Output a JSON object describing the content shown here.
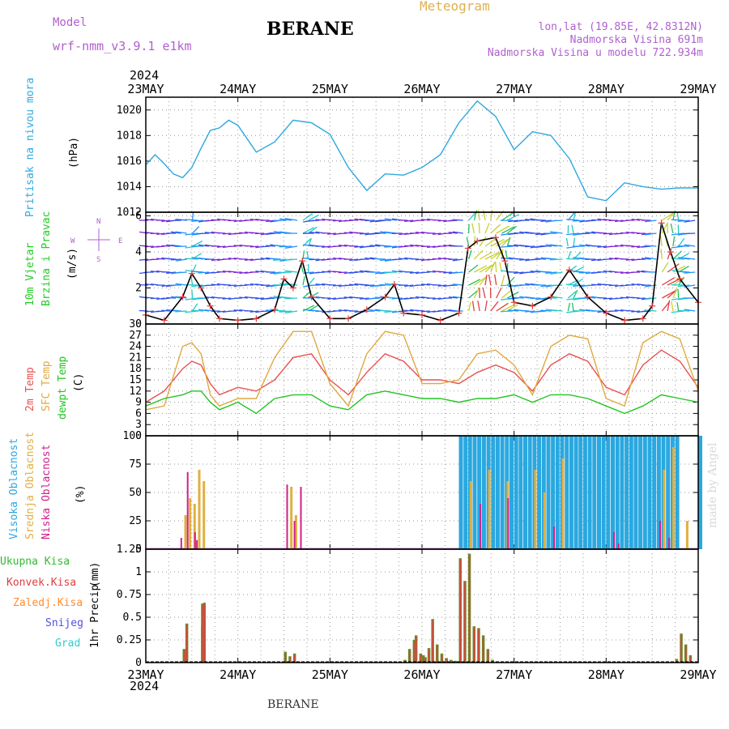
{
  "header": {
    "model_label": "Model",
    "model_name": "wrf-nmm_v3.9.1  e1km",
    "station": "BERANE",
    "product": "Meteogram",
    "coords": "lon,lat (19.85E, 42.8312N)",
    "elevation": "Nadmorska Visina 691m",
    "model_elevation": "Nadmorska Visina u modelu 722.934m",
    "footer_station": "BERANE",
    "credit": "made by Angel"
  },
  "colors": {
    "pressure": "#2fa8e0",
    "temp2m": "#e85050",
    "sfc": "#e0a840",
    "dewpoint": "#22c422",
    "high_cloud": "#2aa8e0",
    "mid_cloud": "#e0b040",
    "low_cloud": "#d0208a",
    "total_precip": "#33bb33",
    "conv_precip": "#e04040",
    "grid_precip": "#ff8c33",
    "snow": "#5050e0",
    "graupel": "#33cccc",
    "wind_label": "#22cc22"
  },
  "time_axis": {
    "year": "2024",
    "days": [
      "23MAY",
      "24MAY",
      "25MAY",
      "26MAY",
      "27MAY",
      "28MAY",
      "29MAY"
    ]
  },
  "chart_data": [
    {
      "type": "line",
      "panel": "pressure",
      "ylabel": "Pritisak na nivou mora",
      "unit": "(hPa)",
      "ylim": [
        1012,
        1021
      ],
      "yticks": [
        1012,
        1014,
        1016,
        1018,
        1020
      ],
      "x": [
        0,
        0.1,
        0.2,
        0.3,
        0.4,
        0.5,
        0.6,
        0.7,
        0.8,
        0.9,
        1.0,
        1.2,
        1.4,
        1.6,
        1.8,
        2.0,
        2.2,
        2.4,
        2.6,
        2.8,
        3.0,
        3.2,
        3.4,
        3.6,
        3.8,
        4.0,
        4.2,
        4.4,
        4.6,
        4.8,
        5.0,
        5.2,
        5.4,
        5.6,
        5.8,
        6.0
      ],
      "series": [
        {
          "values": [
            1015.7,
            1016.5,
            1015.8,
            1015.0,
            1014.7,
            1015.5,
            1017.0,
            1018.4,
            1018.6,
            1019.2,
            1018.8,
            1016.7,
            1017.5,
            1019.2,
            1019.0,
            1018.1,
            1015.5,
            1013.7,
            1015.0,
            1014.9,
            1015.5,
            1016.5,
            1019.0,
            1020.7,
            1019.5,
            1016.9,
            1018.3,
            1018.0,
            1016.2,
            1013.2,
            1012.9,
            1014.3,
            1014.0,
            1013.8,
            1013.9,
            1013.9
          ]
        }
      ]
    },
    {
      "type": "line",
      "panel": "wind",
      "ylabel": [
        "10m Vjetar",
        "Brzina i Pravac"
      ],
      "unit": "(m/s)",
      "compass": {
        "n": "N",
        "s": "S",
        "w": "W",
        "e": "E"
      },
      "ylim": [
        0,
        6.2
      ],
      "yticks": [
        0,
        2,
        4,
        6
      ],
      "x": [
        0,
        0.2,
        0.4,
        0.5,
        0.6,
        0.7,
        0.8,
        1.0,
        1.2,
        1.4,
        1.5,
        1.6,
        1.7,
        1.8,
        2.0,
        2.2,
        2.4,
        2.6,
        2.7,
        2.8,
        3.0,
        3.2,
        3.4,
        3.5,
        3.6,
        3.8,
        3.9,
        4.0,
        4.2,
        4.4,
        4.6,
        4.8,
        5.0,
        5.2,
        5.4,
        5.5,
        5.6,
        5.7,
        5.8,
        6.0
      ],
      "series": [
        {
          "values": [
            0.5,
            0.2,
            1.5,
            2.8,
            2.0,
            1.0,
            0.3,
            0.2,
            0.3,
            0.8,
            2.5,
            2.0,
            3.5,
            1.5,
            0.3,
            0.3,
            0.8,
            1.5,
            2.2,
            0.6,
            0.5,
            0.2,
            0.6,
            4.2,
            4.6,
            4.8,
            3.5,
            1.2,
            1.0,
            1.5,
            3.0,
            1.5,
            0.6,
            0.2,
            0.3,
            1.0,
            5.6,
            4.0,
            2.5,
            1.2
          ]
        }
      ]
    },
    {
      "type": "line",
      "panel": "temperature",
      "ylabel": [
        "2m Temp",
        "SFC Temp",
        "dewpt Temp"
      ],
      "unit": "(C)",
      "ylim": [
        0,
        30
      ],
      "yticks": [
        0,
        3,
        6,
        9,
        12,
        15,
        18,
        21,
        24,
        27,
        30
      ],
      "x": [
        0,
        0.2,
        0.4,
        0.5,
        0.6,
        0.7,
        0.8,
        1.0,
        1.2,
        1.4,
        1.6,
        1.8,
        2.0,
        2.2,
        2.4,
        2.6,
        2.8,
        3.0,
        3.2,
        3.4,
        3.6,
        3.8,
        4.0,
        4.2,
        4.4,
        4.6,
        4.8,
        5.0,
        5.2,
        5.4,
        5.6,
        5.8,
        6.0
      ],
      "series": [
        {
          "name": "2m Temp",
          "values": [
            9,
            12,
            18,
            20,
            19,
            14,
            11,
            13,
            12,
            15,
            21,
            22,
            15,
            11,
            17,
            22,
            20,
            15,
            15,
            14,
            17,
            19,
            17,
            12,
            19,
            22,
            20,
            13,
            11,
            19,
            23,
            20,
            13
          ]
        },
        {
          "name": "SFC Temp",
          "values": [
            7,
            8,
            24,
            25,
            22,
            11,
            8,
            10,
            10,
            21,
            28,
            28,
            14,
            8,
            22,
            28,
            27,
            14,
            14,
            15,
            22,
            23,
            19,
            11,
            24,
            27,
            26,
            10,
            8,
            25,
            28,
            26,
            12
          ]
        },
        {
          "name": "dewpt Temp",
          "values": [
            8,
            10,
            11,
            12,
            12,
            9,
            7,
            9,
            6,
            10,
            11,
            11,
            8,
            7,
            11,
            12,
            11,
            10,
            10,
            9,
            10,
            10,
            11,
            9,
            11,
            11,
            10,
            8,
            6,
            8,
            11,
            10,
            9
          ]
        }
      ]
    },
    {
      "type": "bar",
      "panel": "cloud",
      "ylabel": [
        "Visoka Oblacnost",
        "Srednja Oblacnost",
        "Niska Oblacnost"
      ],
      "unit": "(%)",
      "ylim": [
        0,
        100
      ],
      "yticks": [
        0,
        25,
        50,
        75,
        100
      ],
      "series": [
        {
          "name": "Visoka Oblacnost",
          "x": [
            3.4,
            3.45,
            3.5,
            3.55,
            3.6,
            3.65,
            3.7,
            3.75,
            3.8,
            3.85,
            3.9,
            3.95,
            4.0,
            4.05,
            4.1,
            4.15,
            4.2,
            4.25,
            4.3,
            4.35,
            4.4,
            4.45,
            4.5,
            4.55,
            4.6,
            4.65,
            4.7,
            4.75,
            4.8,
            4.85,
            4.9,
            4.95,
            5.0,
            5.05,
            5.1,
            5.15,
            5.2,
            5.25,
            5.3,
            5.35,
            5.4,
            5.45,
            5.5,
            5.55,
            5.6,
            5.65,
            5.7,
            5.75,
            6.0
          ],
          "values": [
            100,
            100,
            100,
            100,
            100,
            100,
            100,
            100,
            100,
            100,
            100,
            100,
            100,
            100,
            100,
            100,
            100,
            100,
            100,
            100,
            100,
            100,
            100,
            100,
            100,
            100,
            100,
            100,
            100,
            100,
            100,
            100,
            100,
            100,
            100,
            100,
            100,
            100,
            100,
            100,
            100,
            100,
            100,
            100,
            100,
            100,
            100,
            100,
            100
          ]
        },
        {
          "name": "Srednja Oblacnost",
          "x": [
            0.4,
            0.45,
            0.5,
            0.55,
            0.6,
            1.55,
            1.6,
            3.5,
            3.7,
            3.9,
            4.2,
            4.3,
            4.5,
            5.6,
            5.7,
            5.85
          ],
          "values": [
            30,
            45,
            40,
            70,
            60,
            55,
            30,
            60,
            70,
            60,
            70,
            50,
            80,
            70,
            90,
            25
          ]
        },
        {
          "name": "Niska Oblacnost",
          "x": [
            0.35,
            0.42,
            0.5,
            0.52,
            1.5,
            1.58,
            1.65,
            3.6,
            3.9,
            4.4,
            5.05,
            5.1,
            5.55,
            5.65
          ],
          "values": [
            10,
            68,
            15,
            8,
            57,
            25,
            55,
            40,
            45,
            20,
            15,
            5,
            25,
            10
          ]
        }
      ]
    },
    {
      "type": "bar",
      "panel": "precip",
      "ylabel": "1hr Precip",
      "unit": "(mm)",
      "legend": [
        "Ukupna Kisa",
        "Konvek.Kisa",
        "Zaledj.Kisa",
        "Snijeg",
        "Grad"
      ],
      "ylim": [
        0,
        1.25
      ],
      "yticks": [
        0,
        0.25,
        0.5,
        0.75,
        1,
        1.25
      ],
      "series": [
        {
          "name": "Ukupna Kisa",
          "x": [
            0.4,
            0.43,
            0.6,
            0.6,
            0.62,
            1.5,
            1.55,
            1.6,
            2.8,
            2.85,
            2.9,
            2.92,
            2.97,
            3.0,
            3.02,
            3.06,
            3.1,
            3.15,
            3.2,
            3.25,
            3.3,
            3.35,
            3.4,
            3.45,
            3.5,
            3.55,
            3.6,
            3.65,
            3.7,
            3.75,
            5.75,
            5.8,
            5.85,
            5.9
          ],
          "values": [
            0.15,
            0.43,
            0.4,
            0.65,
            0.66,
            0.12,
            0.07,
            0.1,
            0.03,
            0.15,
            0.25,
            0.3,
            0.1,
            0.08,
            0.06,
            0.16,
            0.48,
            0.2,
            0.1,
            0.05,
            0.03,
            0.02,
            1.15,
            0.9,
            1.2,
            0.4,
            0.38,
            0.3,
            0.15,
            0.03,
            0.04,
            0.32,
            0.2,
            0.08
          ]
        }
      ]
    }
  ]
}
